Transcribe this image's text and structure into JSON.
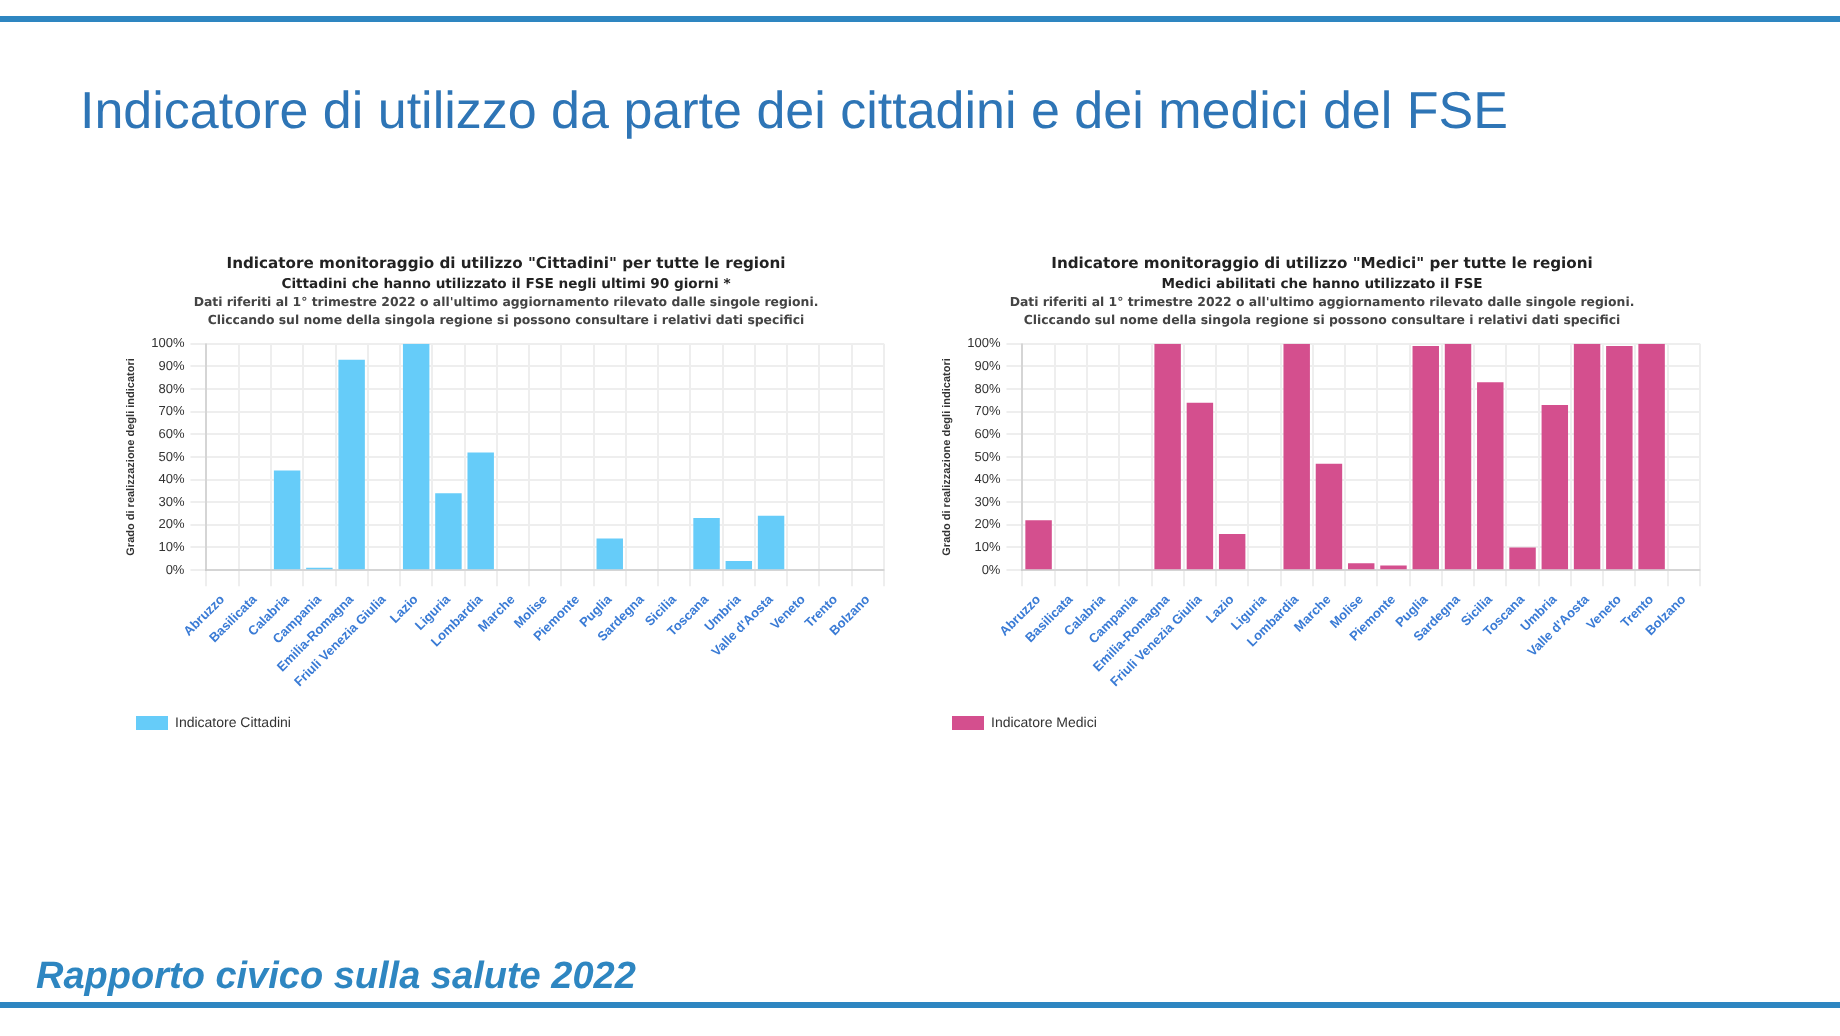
{
  "chart_data": [
    {
      "type": "other",
      "title": "Indicatore di utilizzo da parte dei cittadini e dei medici del FSE",
      "annotations": [
        "Rapporto civico sulla salute 2022"
      ]
    },
    {
      "type": "bar",
      "title": "Indicatore monitoraggio di utilizzo \"Cittadini\" per tutte le regioni",
      "subtitle": "Cittadini che hanno utilizzato il FSE negli ultimi 90 giorni *",
      "annotations": [
        "Dati riferiti al 1° trimestre 2022 o all'ultimo aggiornamento rilevato dalle singole regioni.",
        "Cliccando sul nome della singola regione si possono consultare i relativi dati specifici"
      ],
      "ylabel": "Grado di realizzazione degli indicatori",
      "categories": [
        "Abruzzo",
        "Basilicata",
        "Calabria",
        "Campania",
        "Emilia-Romagna",
        "Friuli Venezia Giulia",
        "Lazio",
        "Liguria",
        "Lombardia",
        "Marche",
        "Molise",
        "Piemonte",
        "Puglia",
        "Sardegna",
        "Sicilia",
        "Toscana",
        "Umbria",
        "Valle d'Aosta",
        "Veneto",
        "Trento",
        "Bolzano"
      ],
      "series": [
        {
          "name": "Indicatore Cittadini",
          "color": "#66ccf9",
          "values": [
            0,
            0,
            44,
            1,
            93,
            0,
            100,
            34,
            52,
            0,
            0,
            0,
            14,
            0,
            0,
            23,
            4,
            24,
            0,
            0,
            0
          ]
        }
      ],
      "ylim": [
        0,
        100
      ],
      "yticks": [
        {
          "value": 0,
          "label": "0%"
        },
        {
          "value": 10,
          "label": "10%"
        },
        {
          "value": 20,
          "label": "20%"
        },
        {
          "value": 30,
          "label": "30%"
        },
        {
          "value": 40,
          "label": "40%"
        },
        {
          "value": 50,
          "label": "50%"
        },
        {
          "value": 60,
          "label": "60%"
        },
        {
          "value": 70,
          "label": "70%"
        },
        {
          "value": 80,
          "label": "80%"
        },
        {
          "value": 90,
          "label": "90%"
        },
        {
          "value": 100,
          "label": "100%"
        }
      ],
      "grid": true,
      "legend": "bottom"
    },
    {
      "type": "bar",
      "title": "Indicatore monitoraggio di utilizzo \"Medici\" per tutte le regioni",
      "subtitle": "Medici abilitati che hanno utilizzato il FSE",
      "annotations": [
        "Dati riferiti al 1° trimestre 2022 o all'ultimo aggiornamento rilevato dalle singole regioni.",
        "Cliccando sul nome della singola regione si possono consultare i relativi dati specifici"
      ],
      "ylabel": "Grado di realizzazione degli indicatori",
      "categories": [
        "Abruzzo",
        "Basilicata",
        "Calabria",
        "Campania",
        "Emilia-Romagna",
        "Friuli Venezia Giulia",
        "Lazio",
        "Liguria",
        "Lombardia",
        "Marche",
        "Molise",
        "Piemonte",
        "Puglia",
        "Sardegna",
        "Sicilia",
        "Toscana",
        "Umbria",
        "Valle d'Aosta",
        "Veneto",
        "Trento",
        "Bolzano"
      ],
      "series": [
        {
          "name": "Indicatore Medici",
          "color": "#d44f8e",
          "values": [
            22,
            0,
            0,
            0,
            100,
            74,
            16,
            0,
            100,
            47,
            3,
            2,
            99,
            100,
            83,
            10,
            73,
            100,
            99,
            100,
            0
          ]
        }
      ],
      "ylim": [
        0,
        100
      ],
      "yticks": [
        {
          "value": 0,
          "label": "0%"
        },
        {
          "value": 10,
          "label": "10%"
        },
        {
          "value": 20,
          "label": "20%"
        },
        {
          "value": 30,
          "label": "30%"
        },
        {
          "value": 40,
          "label": "40%"
        },
        {
          "value": 50,
          "label": "50%"
        },
        {
          "value": 60,
          "label": "60%"
        },
        {
          "value": 70,
          "label": "70%"
        },
        {
          "value": 80,
          "label": "80%"
        },
        {
          "value": 90,
          "label": "90%"
        },
        {
          "value": 100,
          "label": "100%"
        }
      ],
      "grid": true,
      "legend": "bottom"
    }
  ]
}
